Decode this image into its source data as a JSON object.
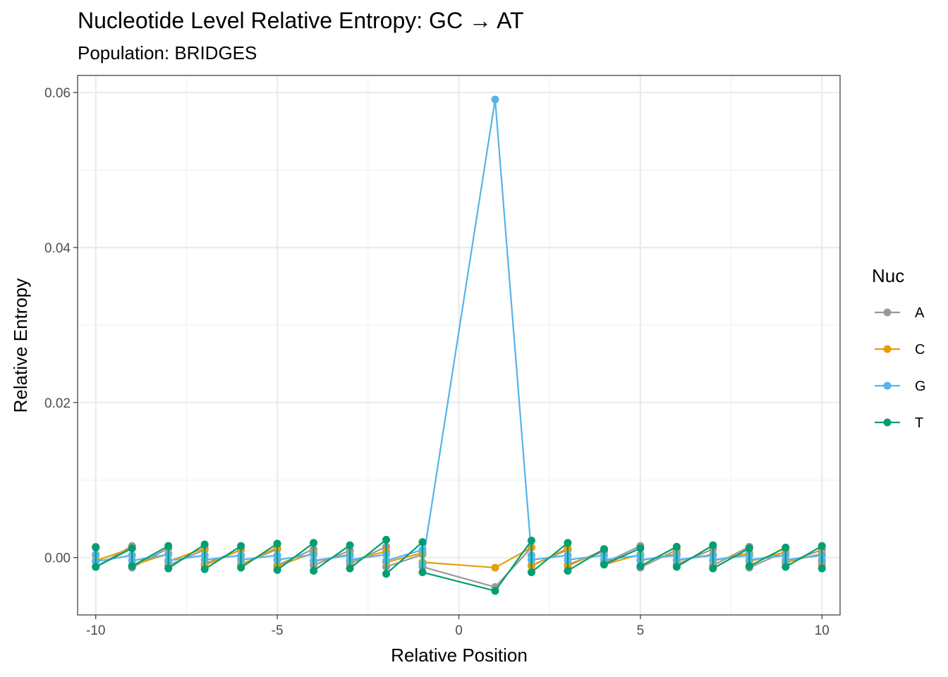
{
  "chart_data": {
    "type": "line",
    "title": "Nucleotide Level Relative Entropy: GC → AT",
    "subtitle": "Population: BRIDGES",
    "xlabel": "Relative Position",
    "ylabel": "Relative Entropy",
    "xlim": [
      -10.5,
      10.5
    ],
    "ylim": [
      -0.0074,
      0.0622
    ],
    "x_ticks": [
      -10,
      -5,
      0,
      5,
      10
    ],
    "x_tick_labels": [
      "-10",
      "-5",
      "0",
      "5",
      "10"
    ],
    "y_ticks": [
      0.0,
      0.02,
      0.04,
      0.06
    ],
    "y_tick_labels": [
      "0.00",
      "0.02",
      "0.04",
      "0.06"
    ],
    "grid": true,
    "legend": {
      "title": "Nuc",
      "position": "right"
    },
    "series": [
      {
        "name": "A",
        "color": "#999999",
        "points": [
          [
            -10,
            0.0014
          ],
          [
            -10,
            -0.0012
          ],
          [
            -9,
            0.0015
          ],
          [
            -9,
            -0.0013
          ],
          [
            -8,
            0.0012
          ],
          [
            -8,
            -0.001
          ],
          [
            -7,
            0.001
          ],
          [
            -7,
            -0.0008
          ],
          [
            -6,
            0.001
          ],
          [
            -6,
            -0.0009
          ],
          [
            -5,
            0.0011
          ],
          [
            -5,
            -0.001
          ],
          [
            -4,
            0.0011
          ],
          [
            -4,
            -0.001
          ],
          [
            -3,
            0.0009
          ],
          [
            -3,
            -0.0008
          ],
          [
            -2,
            0.0014
          ],
          [
            -2,
            -0.0012
          ],
          [
            -1,
            0.0004
          ],
          [
            -1,
            -0.0012
          ],
          [
            1,
            -0.0038
          ],
          [
            2,
            0.0013
          ],
          [
            2,
            -0.001
          ],
          [
            3,
            0.001
          ],
          [
            3,
            -0.0009
          ],
          [
            4,
            0.0008
          ],
          [
            4,
            -0.0007
          ],
          [
            5,
            0.0015
          ],
          [
            5,
            -0.0013
          ],
          [
            6,
            0.001
          ],
          [
            6,
            -0.0009
          ],
          [
            7,
            0.0011
          ],
          [
            7,
            -0.001
          ],
          [
            8,
            0.0014
          ],
          [
            8,
            -0.0013
          ],
          [
            9,
            0.0008
          ],
          [
            9,
            -0.0007
          ],
          [
            10,
            0.001
          ],
          [
            10,
            -0.0009
          ]
        ]
      },
      {
        "name": "C",
        "color": "#E69F00",
        "points": [
          [
            -10,
            0.0003
          ],
          [
            -10,
            -0.0004
          ],
          [
            -9,
            0.0012
          ],
          [
            -9,
            -0.001
          ],
          [
            -8,
            0.0005
          ],
          [
            -8,
            -0.0005
          ],
          [
            -7,
            0.0012
          ],
          [
            -7,
            -0.001
          ],
          [
            -6,
            0.001
          ],
          [
            -6,
            -0.0009
          ],
          [
            -5,
            0.0013
          ],
          [
            -5,
            -0.0011
          ],
          [
            -4,
            0.0006
          ],
          [
            -4,
            -0.0005
          ],
          [
            -3,
            0.0004
          ],
          [
            -3,
            -0.0004
          ],
          [
            -2,
            0.0008
          ],
          [
            -2,
            -0.0006
          ],
          [
            -1,
            0.0006
          ],
          [
            -1,
            -0.0006
          ],
          [
            1,
            -0.0013
          ],
          [
            2,
            0.0013
          ],
          [
            2,
            -0.0011
          ],
          [
            3,
            0.0012
          ],
          [
            3,
            -0.0011
          ],
          [
            4,
            0.001
          ],
          [
            4,
            -0.0009
          ],
          [
            5,
            0.0004
          ],
          [
            5,
            -0.0004
          ],
          [
            6,
            0.0005
          ],
          [
            6,
            -0.0004
          ],
          [
            7,
            0.0004
          ],
          [
            7,
            -0.0004
          ],
          [
            8,
            0.0006
          ],
          [
            8,
            -0.0005
          ],
          [
            9,
            0.0007
          ],
          [
            9,
            -0.0006
          ],
          [
            10,
            0.0005
          ],
          [
            10,
            -0.0005
          ]
        ]
      },
      {
        "name": "G",
        "color": "#56B4E9",
        "points": [
          [
            -10,
            0.0004
          ],
          [
            -10,
            -0.0005
          ],
          [
            -9,
            0.0003
          ],
          [
            -9,
            -0.0004
          ],
          [
            -8,
            0.0004
          ],
          [
            -8,
            -0.0004
          ],
          [
            -7,
            0.0003
          ],
          [
            -7,
            -0.0003
          ],
          [
            -6,
            0.0003
          ],
          [
            -6,
            -0.0003
          ],
          [
            -5,
            0.0003
          ],
          [
            -5,
            -0.0003
          ],
          [
            -4,
            0.0004
          ],
          [
            -4,
            -0.0004
          ],
          [
            -3,
            0.0003
          ],
          [
            -3,
            -0.0003
          ],
          [
            -2,
            0.0004
          ],
          [
            -2,
            -0.0004
          ],
          [
            -1,
            0.001
          ],
          [
            -1,
            -0.0008
          ],
          [
            1,
            0.0591
          ],
          [
            2,
            0.0003
          ],
          [
            2,
            -0.0003
          ],
          [
            3,
            0.0003
          ],
          [
            3,
            -0.0003
          ],
          [
            4,
            0.0003
          ],
          [
            4,
            -0.0003
          ],
          [
            5,
            0.0003
          ],
          [
            5,
            -0.0003
          ],
          [
            6,
            0.0003
          ],
          [
            6,
            -0.0003
          ],
          [
            7,
            0.0003
          ],
          [
            7,
            -0.0003
          ],
          [
            8,
            0.0003
          ],
          [
            8,
            -0.0003
          ],
          [
            9,
            0.0003
          ],
          [
            9,
            -0.0003
          ],
          [
            10,
            0.0003
          ],
          [
            10,
            -0.0003
          ]
        ]
      },
      {
        "name": "T",
        "color": "#009E73",
        "points": [
          [
            -10,
            0.0013
          ],
          [
            -10,
            -0.0012
          ],
          [
            -9,
            0.0012
          ],
          [
            -9,
            -0.0011
          ],
          [
            -8,
            0.0015
          ],
          [
            -8,
            -0.0014
          ],
          [
            -7,
            0.0017
          ],
          [
            -7,
            -0.0015
          ],
          [
            -6,
            0.0015
          ],
          [
            -6,
            -0.0013
          ],
          [
            -5,
            0.0018
          ],
          [
            -5,
            -0.0016
          ],
          [
            -4,
            0.0019
          ],
          [
            -4,
            -0.0017
          ],
          [
            -3,
            0.0016
          ],
          [
            -3,
            -0.0014
          ],
          [
            -2,
            0.0023
          ],
          [
            -2,
            -0.0021
          ],
          [
            -1,
            0.002
          ],
          [
            -1,
            -0.0019
          ],
          [
            1,
            -0.0043
          ],
          [
            2,
            0.0022
          ],
          [
            2,
            -0.0019
          ],
          [
            3,
            0.0019
          ],
          [
            3,
            -0.0017
          ],
          [
            4,
            0.0011
          ],
          [
            4,
            -0.0009
          ],
          [
            5,
            0.0012
          ],
          [
            5,
            -0.0011
          ],
          [
            6,
            0.0014
          ],
          [
            6,
            -0.0012
          ],
          [
            7,
            0.0016
          ],
          [
            7,
            -0.0014
          ],
          [
            8,
            0.0012
          ],
          [
            8,
            -0.0011
          ],
          [
            9,
            0.0013
          ],
          [
            9,
            -0.0012
          ],
          [
            10,
            0.0015
          ],
          [
            10,
            -0.0014
          ]
        ]
      }
    ]
  }
}
